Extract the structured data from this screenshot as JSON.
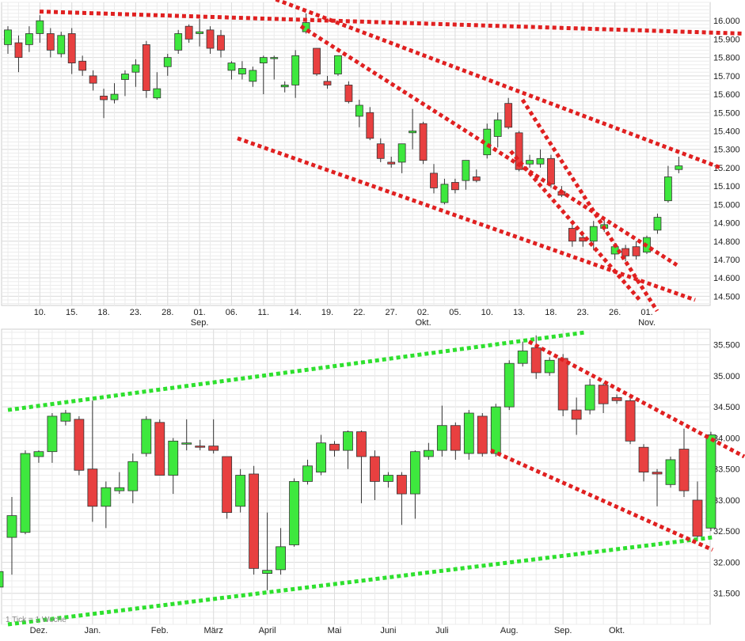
{
  "colors": {
    "up": "#3ee83e",
    "down": "#e84040",
    "grid": "#dddddd",
    "red_trend": "#e02020",
    "green_trend": "#2ee02e",
    "axis_text": "#222222"
  },
  "chart_data": [
    {
      "type": "candlestick",
      "name": "daily",
      "ylim": [
        14.45,
        16.1
      ],
      "y_ticks": [
        "16.000",
        "15.900",
        "15.800",
        "15.700",
        "15.600",
        "15.500",
        "15.400",
        "15.300",
        "15.200",
        "15.100",
        "15.000",
        "14.900",
        "14.800",
        "14.700",
        "14.600",
        "14.500"
      ],
      "x_labels": [
        {
          "i": 3,
          "label": "10."
        },
        {
          "i": 6,
          "label": "15."
        },
        {
          "i": 9,
          "label": "18."
        },
        {
          "i": 12,
          "label": "23."
        },
        {
          "i": 15,
          "label": "28."
        },
        {
          "i": 18,
          "label": "01.",
          "sub": "Sep."
        },
        {
          "i": 21,
          "label": "06."
        },
        {
          "i": 24,
          "label": "11."
        },
        {
          "i": 27,
          "label": "14."
        },
        {
          "i": 30,
          "label": "19."
        },
        {
          "i": 33,
          "label": "22."
        },
        {
          "i": 36,
          "label": "27."
        },
        {
          "i": 39,
          "label": "02.",
          "sub": "Okt."
        },
        {
          "i": 42,
          "label": "05."
        },
        {
          "i": 45,
          "label": "10."
        },
        {
          "i": 48,
          "label": "13."
        },
        {
          "i": 51,
          "label": "18."
        },
        {
          "i": 54,
          "label": "23."
        },
        {
          "i": 57,
          "label": "26."
        },
        {
          "i": 60,
          "label": "01.",
          "sub": "Nov."
        }
      ],
      "candles": [
        [
          15.87,
          15.95,
          15.82,
          15.97
        ],
        [
          15.88,
          15.8,
          15.72,
          15.92
        ],
        [
          15.87,
          15.93,
          15.83,
          15.97
        ],
        [
          15.93,
          16.0,
          15.88,
          16.03
        ],
        [
          15.93,
          15.84,
          15.8,
          15.96
        ],
        [
          15.82,
          15.92,
          15.8,
          15.94
        ],
        [
          15.93,
          15.77,
          15.71,
          15.96
        ],
        [
          15.78,
          15.73,
          15.7,
          15.81
        ],
        [
          15.7,
          15.66,
          15.62,
          15.73
        ],
        [
          15.59,
          15.57,
          15.47,
          15.63
        ],
        [
          15.57,
          15.6,
          15.55,
          15.66
        ],
        [
          15.68,
          15.71,
          15.59,
          15.73
        ],
        [
          15.72,
          15.76,
          15.64,
          15.79
        ],
        [
          15.87,
          15.62,
          15.58,
          15.89
        ],
        [
          15.58,
          15.63,
          15.57,
          15.72
        ],
        [
          15.75,
          15.8,
          15.7,
          15.82
        ],
        [
          15.84,
          15.93,
          15.82,
          15.95
        ],
        [
          15.97,
          15.9,
          15.88,
          15.98
        ],
        [
          15.93,
          15.94,
          15.86,
          16.01
        ],
        [
          15.95,
          15.85,
          15.82,
          15.97
        ],
        [
          15.92,
          15.84,
          15.8,
          15.95
        ],
        [
          15.73,
          15.77,
          15.68,
          15.78
        ],
        [
          15.71,
          15.74,
          15.68,
          15.78
        ],
        [
          15.67,
          15.73,
          15.64,
          15.75
        ],
        [
          15.77,
          15.8,
          15.6,
          15.81
        ],
        [
          15.8,
          15.8,
          15.68,
          15.81
        ],
        [
          15.64,
          15.65,
          15.61,
          15.67
        ],
        [
          15.65,
          15.81,
          15.58,
          15.84
        ],
        [
          15.94,
          15.99,
          15.93,
          16.04
        ],
        [
          15.85,
          15.71,
          15.7,
          15.85
        ],
        [
          15.67,
          15.65,
          15.63,
          15.7
        ],
        [
          15.71,
          15.81,
          15.7,
          15.81
        ],
        [
          15.65,
          15.56,
          15.55,
          15.67
        ],
        [
          15.48,
          15.54,
          15.42,
          15.57
        ],
        [
          15.5,
          15.36,
          15.35,
          15.53
        ],
        [
          15.33,
          15.25,
          15.23,
          15.36
        ],
        [
          15.23,
          15.22,
          15.2,
          15.26
        ],
        [
          15.23,
          15.33,
          15.17,
          15.33
        ],
        [
          15.39,
          15.4,
          15.3,
          15.52
        ],
        [
          15.44,
          15.24,
          15.22,
          15.45
        ],
        [
          15.17,
          15.09,
          15.06,
          15.22
        ],
        [
          15.01,
          15.11,
          15.0,
          15.14
        ],
        [
          15.12,
          15.08,
          15.06,
          15.14
        ],
        [
          15.13,
          15.24,
          15.08,
          15.24
        ],
        [
          15.15,
          15.13,
          15.12,
          15.19
        ],
        [
          15.27,
          15.41,
          15.25,
          15.44
        ],
        [
          15.37,
          15.46,
          15.31,
          15.5
        ],
        [
          15.55,
          15.42,
          15.41,
          15.58
        ],
        [
          15.39,
          15.19,
          15.18,
          15.4
        ],
        [
          15.22,
          15.24,
          15.2,
          15.27
        ],
        [
          15.22,
          15.25,
          15.2,
          15.3
        ],
        [
          15.25,
          15.11,
          15.09,
          15.27
        ],
        [
          15.07,
          15.05,
          15.04,
          15.1
        ],
        [
          14.87,
          14.8,
          14.77,
          14.91
        ],
        [
          14.82,
          14.8,
          14.77,
          14.85
        ],
        [
          14.8,
          14.88,
          14.75,
          14.91
        ],
        [
          14.87,
          14.89,
          14.85,
          14.92
        ],
        [
          14.73,
          14.77,
          14.7,
          14.79
        ],
        [
          14.76,
          14.72,
          14.69,
          14.78
        ],
        [
          14.77,
          14.72,
          14.7,
          14.8
        ],
        [
          14.74,
          14.82,
          14.73,
          14.83
        ],
        [
          14.86,
          14.93,
          14.84,
          14.95
        ],
        [
          15.02,
          15.15,
          15.01,
          15.21
        ],
        [
          15.19,
          15.21,
          15.17,
          15.26
        ]
      ],
      "trendlines": [
        {
          "from": [
            50,
            16.05
          ],
          "to": [
            940,
            15.93
          ]
        },
        {
          "from": [
            340,
            16.13
          ],
          "to": [
            910,
            15.2
          ]
        },
        {
          "from": [
            380,
            15.97
          ],
          "to": [
            855,
            14.67
          ]
        },
        {
          "from": [
            660,
            15.57
          ],
          "to": [
            830,
            14.42
          ]
        },
        {
          "from": [
            645,
            15.29
          ],
          "to": [
            810,
            14.47
          ]
        },
        {
          "from": [
            300,
            15.36
          ],
          "to": [
            878,
            14.48
          ]
        }
      ]
    },
    {
      "type": "candlestick",
      "name": "weekly",
      "ylim": [
        31.0,
        35.75
      ],
      "y_ticks": [
        "35.500",
        "35.000",
        "34.500",
        "34.000",
        "33.500",
        "33.000",
        "32.500",
        "32.000",
        "31.500"
      ],
      "x_labels": [
        {
          "i": 3,
          "label": "Dez."
        },
        {
          "i": 7,
          "label": "Jan."
        },
        {
          "i": 12,
          "label": "Feb."
        },
        {
          "i": 16,
          "label": "März"
        },
        {
          "i": 20,
          "label": "April"
        },
        {
          "i": 25,
          "label": "Mai"
        },
        {
          "i": 29,
          "label": "Juni"
        },
        {
          "i": 33,
          "label": "Juli"
        },
        {
          "i": 38,
          "label": "Aug."
        },
        {
          "i": 42,
          "label": "Sep."
        },
        {
          "i": 46,
          "label": "Okt."
        }
      ],
      "candles": [
        [
          31.6,
          31.85,
          31.5,
          32.0
        ],
        [
          32.4,
          32.75,
          31.8,
          33.05
        ],
        [
          32.48,
          33.75,
          32.45,
          33.8
        ],
        [
          33.7,
          33.78,
          33.6,
          33.8
        ],
        [
          33.78,
          34.35,
          33.6,
          34.4
        ],
        [
          34.27,
          34.4,
          34.2,
          34.45
        ],
        [
          34.3,
          33.48,
          33.4,
          34.35
        ],
        [
          33.5,
          32.9,
          32.65,
          34.6
        ],
        [
          32.9,
          33.2,
          32.55,
          33.3
        ],
        [
          33.15,
          33.2,
          33.1,
          33.45
        ],
        [
          33.15,
          33.62,
          32.95,
          33.75
        ],
        [
          33.75,
          34.3,
          33.7,
          34.35
        ],
        [
          34.25,
          33.4,
          33.4,
          34.3
        ],
        [
          33.4,
          33.95,
          33.1,
          34.0
        ],
        [
          33.9,
          33.92,
          33.8,
          34.3
        ],
        [
          33.87,
          33.85,
          33.8,
          33.97
        ],
        [
          33.87,
          33.8,
          33.75,
          34.3
        ],
        [
          33.7,
          32.8,
          32.7,
          33.7
        ],
        [
          32.9,
          33.4,
          32.8,
          33.5
        ],
        [
          33.42,
          31.9,
          31.8,
          33.55
        ],
        [
          31.82,
          31.87,
          31.55,
          32.8
        ],
        [
          31.88,
          32.25,
          31.8,
          32.55
        ],
        [
          32.28,
          33.3,
          32.25,
          33.35
        ],
        [
          33.3,
          33.55,
          33.25,
          33.65
        ],
        [
          33.45,
          33.92,
          33.4,
          34.05
        ],
        [
          33.9,
          33.8,
          33.7,
          33.95
        ],
        [
          33.8,
          34.1,
          33.5,
          34.12
        ],
        [
          34.1,
          33.7,
          32.95,
          34.12
        ],
        [
          33.7,
          33.3,
          33.0,
          33.8
        ],
        [
          33.3,
          33.4,
          33.2,
          33.45
        ],
        [
          33.4,
          33.1,
          32.6,
          33.45
        ],
        [
          33.1,
          33.78,
          32.7,
          33.8
        ],
        [
          33.7,
          33.8,
          33.65,
          33.92
        ],
        [
          33.8,
          34.2,
          33.7,
          34.52
        ],
        [
          34.2,
          33.8,
          33.65,
          34.25
        ],
        [
          33.75,
          34.4,
          33.65,
          34.45
        ],
        [
          34.35,
          33.75,
          33.7,
          34.4
        ],
        [
          33.75,
          34.5,
          33.7,
          34.55
        ],
        [
          34.5,
          35.2,
          34.45,
          35.25
        ],
        [
          35.2,
          35.4,
          35.15,
          35.55
        ],
        [
          35.45,
          35.05,
          34.95,
          35.65
        ],
        [
          35.05,
          35.25,
          35.0,
          35.3
        ],
        [
          35.28,
          34.45,
          34.35,
          35.35
        ],
        [
          34.45,
          34.3,
          34.05,
          34.65
        ],
        [
          34.45,
          34.85,
          34.38,
          34.95
        ],
        [
          34.85,
          34.55,
          34.4,
          34.88
        ],
        [
          34.65,
          34.6,
          34.55,
          34.7
        ],
        [
          34.6,
          33.95,
          33.9,
          34.65
        ],
        [
          33.85,
          33.45,
          33.3,
          33.9
        ],
        [
          33.45,
          33.42,
          32.9,
          33.5
        ],
        [
          33.25,
          33.65,
          33.2,
          33.7
        ],
        [
          33.82,
          33.15,
          33.05,
          34.15
        ],
        [
          33.0,
          32.42,
          32.35,
          33.3
        ],
        [
          32.55,
          34.05,
          32.5,
          34.1
        ]
      ],
      "trendlines": [
        {
          "from": [
            10,
            34.45
          ],
          "to": [
            740,
            35.7
          ],
          "color": "green"
        },
        {
          "from": [
            10,
            31.0
          ],
          "to": [
            900,
            32.4
          ],
          "color": "green"
        },
        {
          "from": [
            668,
            35.55
          ],
          "to": [
            940,
            33.7
          ],
          "color": "red"
        },
        {
          "from": [
            620,
            33.8
          ],
          "to": [
            900,
            32.2
          ],
          "color": "red"
        }
      ],
      "note": "1 Tick = 1 Woche"
    }
  ]
}
